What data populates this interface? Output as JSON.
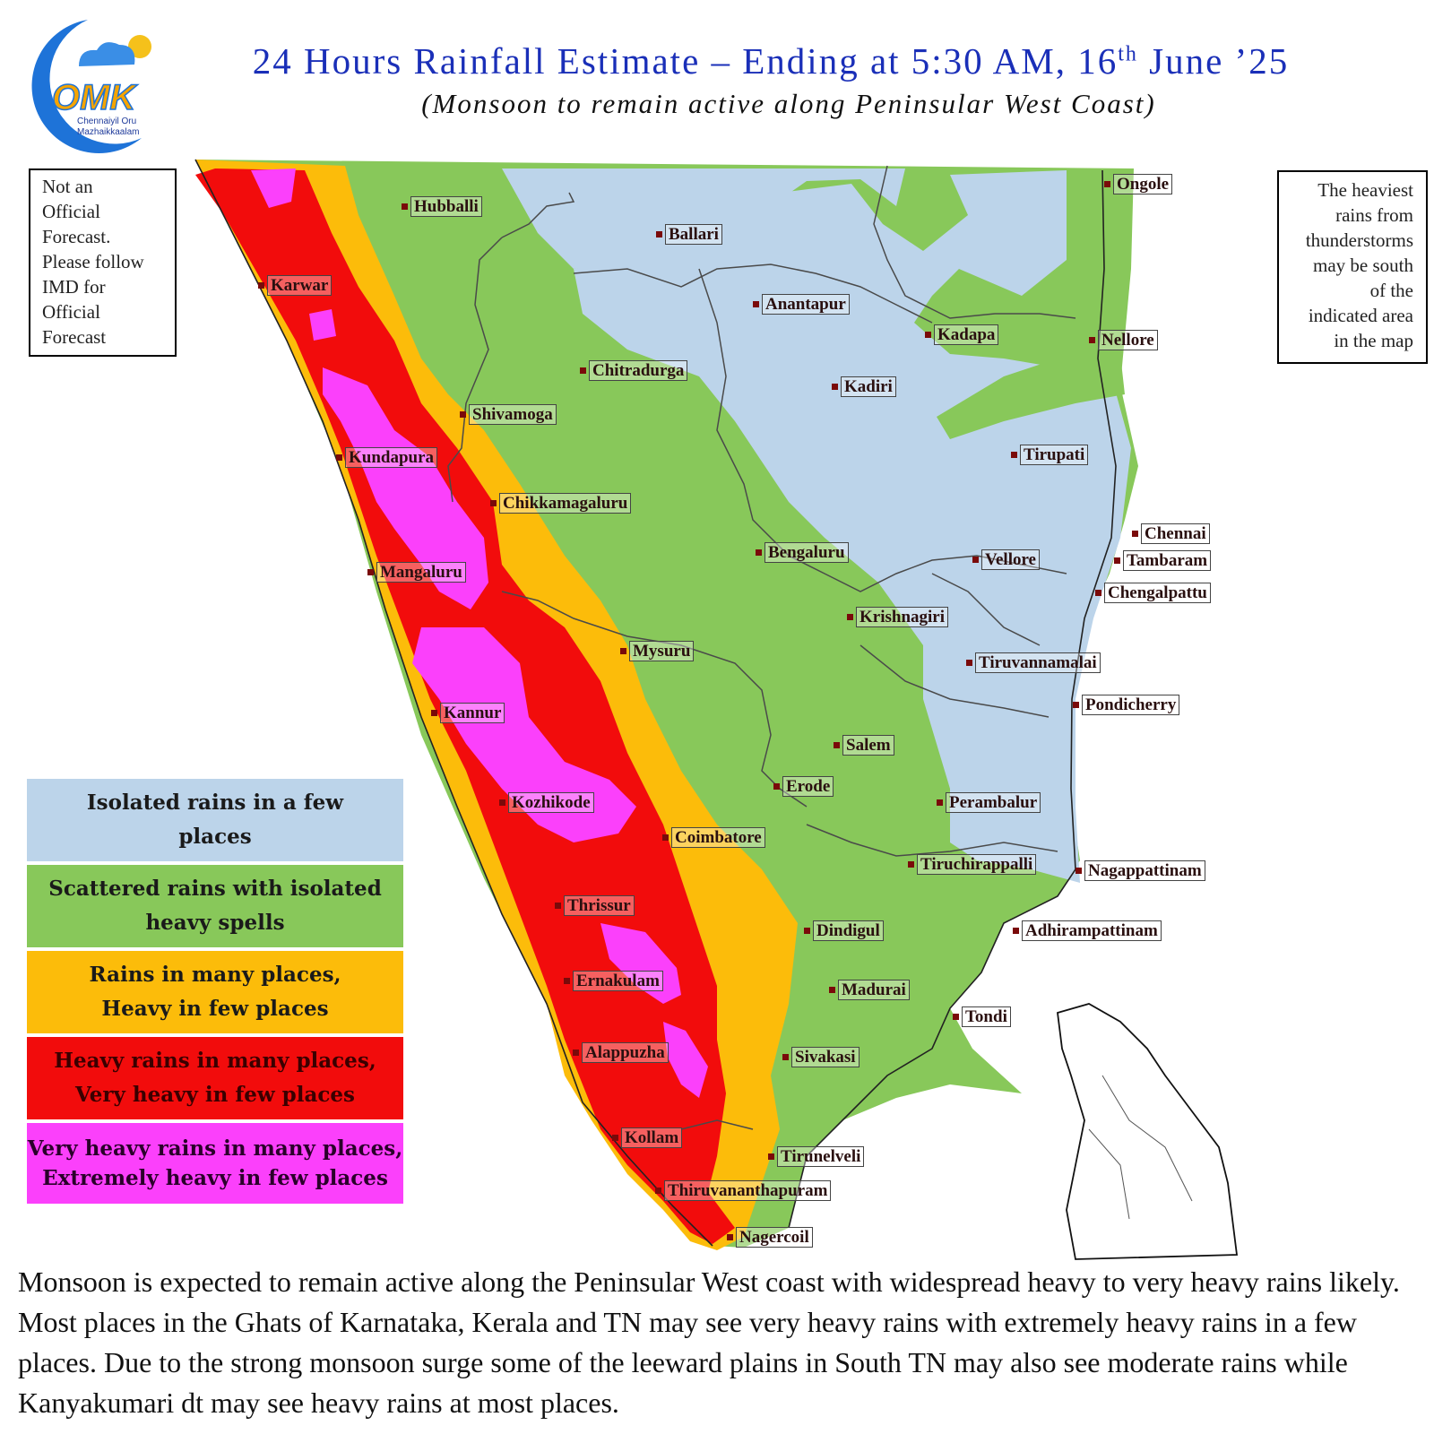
{
  "header": {
    "title_main": "24 Hours Rainfall Estimate – Ending at 5:30 AM, 16",
    "title_sup": "th",
    "title_end": " June ’25",
    "subtitle": "(Monsoon to remain active along Peninsular West Coast)"
  },
  "logo": {
    "wordmark": "OMK",
    "line1": "Chennaiyil Oru",
    "line2": "Mazhaikkaalam"
  },
  "disclaimer": [
    "Not an",
    "Official",
    "Forecast.",
    "Please follow",
    "IMD for",
    "Official",
    "Forecast"
  ],
  "side_note": [
    "The heaviest",
    "rains from",
    "thunderstorms",
    "may be south",
    "of the",
    "indicated area",
    "in the map"
  ],
  "legend": [
    {
      "line1": "Isolated rains in a few",
      "line2": "places",
      "color": "#bcd4ea",
      "text_color": "#1a1a1a"
    },
    {
      "line1": "Scattered rains with isolated",
      "line2": "heavy spells",
      "color": "#88c85a",
      "text_color": "#1a1a1a"
    },
    {
      "line1": "Rains in many places,",
      "line2": "Heavy in few places",
      "color": "#fcbc0a",
      "text_color": "#1a1a1a"
    },
    {
      "line1": "Heavy rains in many places,",
      "line2": "Very heavy in few places",
      "color": "#f20c0c",
      "text_color": "#3a0000"
    },
    {
      "line1": "Very heavy rains in many places,",
      "line2": "Extremely heavy in few places",
      "color": "#fb40fb",
      "text_color": "#2a002a"
    }
  ],
  "cities": {
    "hubballi": "Hubballi",
    "ballari": "Ballari",
    "ongole": "Ongole",
    "karwar": "Karwar",
    "anantapur": "Anantapur",
    "kadapa": "Kadapa",
    "nellore": "Nellore",
    "chitradurga": "Chitradurga",
    "kadiri": "Kadiri",
    "shivamoga": "Shivamoga",
    "tirupati": "Tirupati",
    "kundapura": "Kundapura",
    "chikkamagaluru": "Chikkamagaluru",
    "chennai": "Chennai",
    "bengaluru": "Bengaluru",
    "vellore": "Vellore",
    "tambaram": "Tambaram",
    "mangaluru": "Mangaluru",
    "chengalpattu": "Chengalpattu",
    "krishnagiri": "Krishnagiri",
    "mysuru": "Mysuru",
    "tiruvannamalai": "Tiruvannamalai",
    "kannur": "Kannur",
    "pondicherry": "Pondicherry",
    "salem": "Salem",
    "erode": "Erode",
    "kozhikode": "Kozhikode",
    "perambalur": "Perambalur",
    "coimbatore": "Coimbatore",
    "tiruchirappalli": "Tiruchirappalli",
    "nagappattinam": "Nagappattinam",
    "thrissur": "Thrissur",
    "dindigul": "Dindigul",
    "adhirampattinam": "Adhirampattinam",
    "ernakulam": "Ernakulam",
    "madurai": "Madurai",
    "tondi": "Tondi",
    "alappuzha": "Alappuzha",
    "sivakasi": "Sivakasi",
    "kollam": "Kollam",
    "tirunelveli": "Tirunelveli",
    "thiruvananthapuram": "Thiruvananthapuram",
    "nagercoil": "Nagercoil"
  },
  "description": "Monsoon is expected to remain active along the Peninsular West coast with widespread heavy to very heavy rains likely.  Most places in the Ghats of Karnataka, Kerala and TN may see very heavy rains with extremely heavy rains in a few places. Due to the strong monsoon surge some of the leeward plains in South TN may also see moderate rains while Kanyakumari dt may see heavy rains at most places."
}
